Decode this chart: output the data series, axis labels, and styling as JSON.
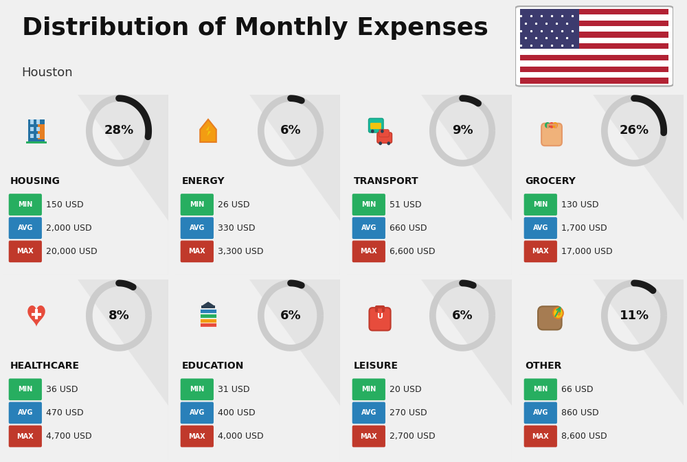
{
  "title": "Distribution of Monthly Expenses",
  "subtitle": "Houston",
  "bg_color": "#f0f0f0",
  "categories": [
    {
      "name": "HOUSING",
      "percent": 28,
      "min": "150 USD",
      "avg": "2,000 USD",
      "max": "20,000 USD",
      "row": 0,
      "col": 0
    },
    {
      "name": "ENERGY",
      "percent": 6,
      "min": "26 USD",
      "avg": "330 USD",
      "max": "3,300 USD",
      "row": 0,
      "col": 1
    },
    {
      "name": "TRANSPORT",
      "percent": 9,
      "min": "51 USD",
      "avg": "660 USD",
      "max": "6,600 USD",
      "row": 0,
      "col": 2
    },
    {
      "name": "GROCERY",
      "percent": 26,
      "min": "130 USD",
      "avg": "1,700 USD",
      "max": "17,000 USD",
      "row": 0,
      "col": 3
    },
    {
      "name": "HEALTHCARE",
      "percent": 8,
      "min": "36 USD",
      "avg": "470 USD",
      "max": "4,700 USD",
      "row": 1,
      "col": 0
    },
    {
      "name": "EDUCATION",
      "percent": 6,
      "min": "31 USD",
      "avg": "400 USD",
      "max": "4,000 USD",
      "row": 1,
      "col": 1
    },
    {
      "name": "LEISURE",
      "percent": 6,
      "min": "20 USD",
      "avg": "270 USD",
      "max": "2,700 USD",
      "row": 1,
      "col": 2
    },
    {
      "name": "OTHER",
      "percent": 11,
      "min": "66 USD",
      "avg": "860 USD",
      "max": "8,600 USD",
      "row": 1,
      "col": 3
    }
  ],
  "color_min": "#27ae60",
  "color_avg": "#2980b9",
  "color_max": "#c0392b",
  "donut_dark": "#1a1a1a",
  "donut_light": "#cccccc",
  "title_fontsize": 26,
  "subtitle_fontsize": 13,
  "cat_fontsize": 10,
  "badge_fontsize": 7,
  "value_fontsize": 9,
  "pct_fontsize": 13,
  "icon_fontsize": 26,
  "flag_stripe_red": "#B22234",
  "flag_canton": "#3C3B6E"
}
